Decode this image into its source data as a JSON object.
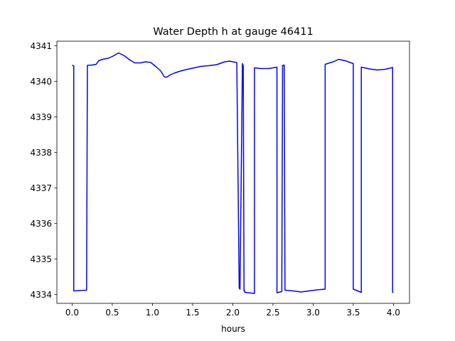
{
  "chart_data": {
    "type": "line",
    "title": "Water Depth h at gauge 46411",
    "xlabel": "hours",
    "ylabel": "",
    "xlim": [
      -0.19,
      4.2
    ],
    "ylim": [
      4333.75,
      4341.13
    ],
    "xticks": [
      0.0,
      0.5,
      1.0,
      1.5,
      2.0,
      2.5,
      3.0,
      3.5,
      4.0
    ],
    "xtick_labels": [
      "0.0",
      "0.5",
      "1.0",
      "1.5",
      "2.0",
      "2.5",
      "3.0",
      "3.5",
      "4.0"
    ],
    "yticks": [
      4334,
      4335,
      4336,
      4337,
      4338,
      4339,
      4340,
      4341
    ],
    "ytick_labels": [
      "4334",
      "4335",
      "4336",
      "4337",
      "4338",
      "4339",
      "4340",
      "4341"
    ],
    "grid": false,
    "line_color": "#0000ff",
    "series": [
      {
        "x": [
          0.0,
          0.02,
          0.02,
          0.18,
          0.19,
          0.25,
          0.3,
          0.33,
          0.38,
          0.45,
          0.5,
          0.58,
          0.65,
          0.72,
          0.78,
          0.85,
          0.92,
          0.98,
          1.05,
          1.1,
          1.15,
          1.18,
          1.22,
          1.27,
          1.32,
          1.4,
          1.5,
          1.6,
          1.7,
          1.8,
          1.9,
          1.96,
          2.0,
          2.05,
          2.08,
          2.09,
          2.12,
          2.13,
          2.14,
          2.15,
          2.15,
          2.27,
          2.27,
          2.35,
          2.45,
          2.55,
          2.55,
          2.61,
          2.62,
          2.62,
          2.64,
          2.65,
          2.65,
          2.75,
          2.85,
          2.95,
          3.05,
          3.15,
          3.15,
          3.25,
          3.32,
          3.4,
          3.5,
          3.5,
          3.6,
          3.6,
          3.7,
          3.8,
          3.9,
          3.99,
          3.99,
          4.0
        ],
        "y": [
          4340.45,
          4340.44,
          4334.1,
          4334.12,
          4340.45,
          4340.46,
          4340.48,
          4340.58,
          4340.62,
          4340.65,
          4340.7,
          4340.8,
          4340.72,
          4340.6,
          4340.52,
          4340.52,
          4340.55,
          4340.53,
          4340.4,
          4340.3,
          4340.12,
          4340.12,
          4340.18,
          4340.23,
          4340.27,
          4340.32,
          4340.37,
          4340.42,
          4340.44,
          4340.47,
          4340.55,
          4340.57,
          4340.55,
          4340.53,
          4334.18,
          4334.15,
          4340.5,
          4340.45,
          4334.1,
          4334.1,
          4334.06,
          4334.03,
          4340.38,
          4340.36,
          4340.36,
          4340.4,
          4334.05,
          4334.08,
          4340.45,
          4340.44,
          4340.46,
          4334.13,
          4334.12,
          4334.1,
          4334.07,
          4334.1,
          4334.13,
          4334.15,
          4340.48,
          4340.55,
          4340.62,
          4340.58,
          4340.5,
          4334.15,
          4334.06,
          4340.4,
          4340.35,
          4340.32,
          4340.34,
          4340.39,
          4334.06,
          4334.05
        ]
      }
    ]
  }
}
